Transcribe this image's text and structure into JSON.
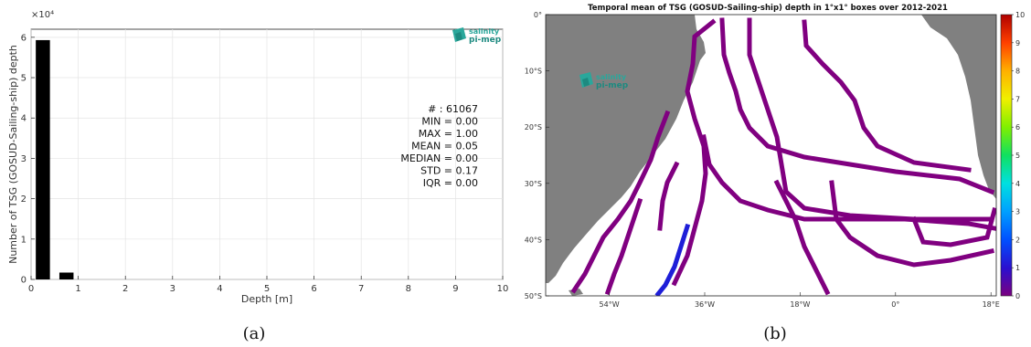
{
  "chart_data": [
    {
      "type": "bar",
      "xlabel": "Depth [m]",
      "ylabel": "Number of TSG (GOSUD-Sailing-ship) depth",
      "exponent_label": "×10⁴",
      "x_ticks": [
        0,
        1,
        2,
        3,
        4,
        5,
        6,
        7,
        8,
        9,
        10
      ],
      "y_ticks": [
        0,
        1,
        2,
        3,
        4,
        5,
        6
      ],
      "xlim": [
        0,
        10
      ],
      "ylim": [
        0,
        6.2
      ],
      "bars": [
        {
          "x_start": 0.1,
          "x_end": 0.4,
          "value": 5.93
        },
        {
          "x_start": 0.6,
          "x_end": 0.9,
          "value": 0.17
        }
      ],
      "grid": true,
      "stats": [
        "# : 61067",
        "MIN = 0.00",
        "MAX =  1.00",
        "MEAN = 0.05",
        "MEDIAN = 0.00",
        "STD = 0.17",
        "IQR = 0.00"
      ],
      "logo": {
        "line1": "salinity",
        "line2": "pi-mep"
      },
      "caption": "(a)"
    },
    {
      "type": "heatmap",
      "title": "Temporal mean of TSG (GOSUD-Sailing-ship) depth in 1°x1° boxes over 2012-2021",
      "x_ticks": [
        "54°W",
        "36°W",
        "18°W",
        "0°",
        "18°E"
      ],
      "x_tick_values": [
        -54,
        -36,
        -18,
        0,
        18
      ],
      "y_ticks": [
        "0°",
        "10°S",
        "20°S",
        "30°S",
        "40°S",
        "50°S"
      ],
      "y_tick_values": [
        0,
        -10,
        -20,
        -30,
        -40,
        -50
      ],
      "xlim": [
        -66,
        19
      ],
      "ylim": [
        -50,
        0
      ],
      "colorbar": {
        "min": 0,
        "max": 10,
        "ticks": [
          0,
          1,
          2,
          3,
          4,
          5,
          6,
          7,
          8,
          9,
          10
        ]
      },
      "colors": {
        "land": "#808080",
        "ocean": "#ffffff",
        "track": "#800080",
        "track_deep": "#1e1ed8"
      },
      "logo": {
        "line1": "salinity",
        "line2": "pi-mep"
      },
      "caption": "(b)"
    }
  ]
}
